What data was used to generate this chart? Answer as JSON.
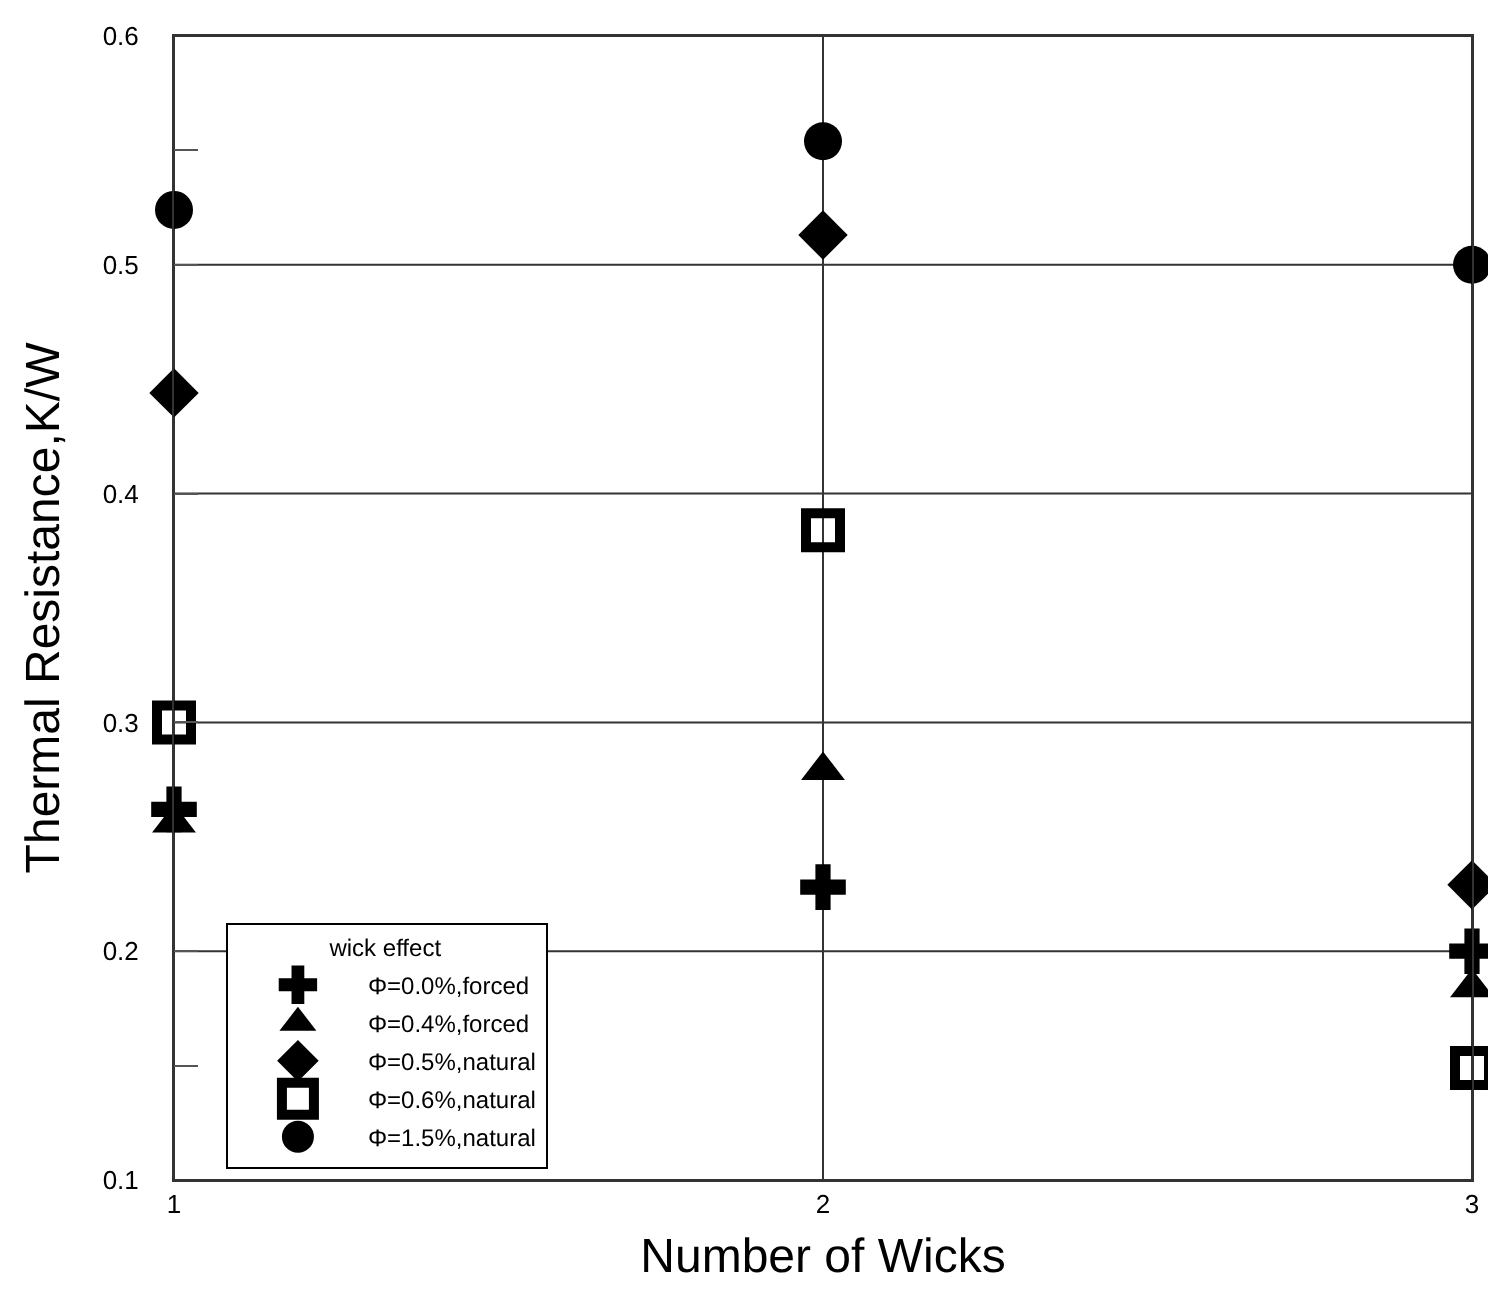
{
  "chart_data": {
    "type": "scatter",
    "xlabel": "Number of Wicks",
    "ylabel": "Thermal Resistance,K/W",
    "legend_title": "wick effect",
    "x": [
      1,
      2,
      3
    ],
    "xlim": [
      1,
      3
    ],
    "xticks": [
      1,
      2,
      3
    ],
    "ylim": [
      0.1,
      0.6
    ],
    "yticks": [
      0.1,
      {
        "value": 0.15,
        "label": null
      },
      0.2,
      0.3,
      0.4,
      0.5,
      {
        "value": 0.55,
        "label": null
      },
      0.6
    ],
    "grid": true,
    "legend": "bottom left",
    "series": [
      {
        "name": "Φ=0.0%,forced",
        "color": "#000000",
        "marker": "cross",
        "values": [
          0.262,
          0.228,
          0.2
        ]
      },
      {
        "name": "Φ=0.4%,forced",
        "color": "#000000",
        "marker": "triangle",
        "values": [
          0.256,
          0.279,
          0.184
        ]
      },
      {
        "name": "Φ=0.5%,natural",
        "color": "#000000",
        "marker": "diamond",
        "values": [
          0.444,
          0.513,
          0.229
        ]
      },
      {
        "name": "Φ=0.6%,natural",
        "color": "#000000",
        "marker": "square",
        "values": [
          0.3,
          0.384,
          0.149
        ]
      },
      {
        "name": "Φ=1.5%,natural",
        "color": "#000000",
        "marker": "circle",
        "values": [
          0.524,
          0.554,
          0.5
        ]
      }
    ]
  }
}
